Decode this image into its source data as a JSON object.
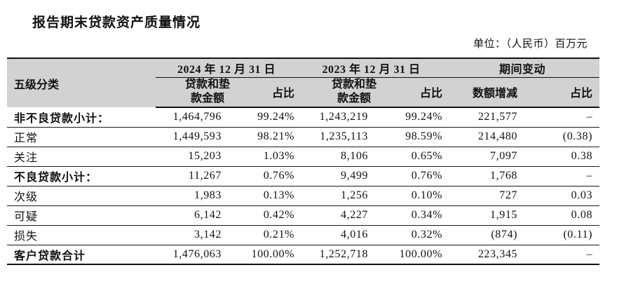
{
  "title": "报告期末贷款资产质量情况",
  "unit_note": "单位：（人民币）百万元",
  "colors": {
    "header_background": "#d2d2d2",
    "border": "#111111",
    "text": "#111111",
    "page_background": "#ffffff"
  },
  "table": {
    "category_header": "五级分类",
    "groups": [
      {
        "label": "2024 年 12 月 31 日"
      },
      {
        "label": "2023 年 12 月 31 日"
      },
      {
        "label": "期间变动"
      }
    ],
    "sub_headers": {
      "amount_2024": "贷款和垫\n款金额",
      "pct_2024": "占比",
      "amount_2023": "贷款和垫\n款金额",
      "pct_2023": "占比",
      "change_amount": "数额增减",
      "change_pct": "占比"
    },
    "rows": [
      {
        "label": "非不良贷款小计：",
        "bold": true,
        "amount_2024": "1,464,796",
        "pct_2024": "99.24%",
        "amount_2023": "1,243,219",
        "pct_2023": "99.24%",
        "change_amount": "221,577",
        "change_pct": "–"
      },
      {
        "label": "正常",
        "bold": false,
        "amount_2024": "1,449,593",
        "pct_2024": "98.21%",
        "amount_2023": "1,235,113",
        "pct_2023": "98.59%",
        "change_amount": "214,480",
        "change_pct": "(0.38)"
      },
      {
        "label": "关注",
        "bold": false,
        "amount_2024": "15,203",
        "pct_2024": "1.03%",
        "amount_2023": "8,106",
        "pct_2023": "0.65%",
        "change_amount": "7,097",
        "change_pct": "0.38"
      },
      {
        "label": "不良贷款小计：",
        "bold": true,
        "amount_2024": "11,267",
        "pct_2024": "0.76%",
        "amount_2023": "9,499",
        "pct_2023": "0.76%",
        "change_amount": "1,768",
        "change_pct": "–"
      },
      {
        "label": "次级",
        "bold": false,
        "amount_2024": "1,983",
        "pct_2024": "0.13%",
        "amount_2023": "1,256",
        "pct_2023": "0.10%",
        "change_amount": "727",
        "change_pct": "0.03"
      },
      {
        "label": "可疑",
        "bold": false,
        "amount_2024": "6,142",
        "pct_2024": "0.42%",
        "amount_2023": "4,227",
        "pct_2023": "0.34%",
        "change_amount": "1,915",
        "change_pct": "0.08"
      },
      {
        "label": "损失",
        "bold": false,
        "amount_2024": "3,142",
        "pct_2024": "0.21%",
        "amount_2023": "4,016",
        "pct_2023": "0.32%",
        "change_amount": "(874)",
        "change_pct": "(0.11)"
      },
      {
        "label": "客户贷款合计",
        "bold": true,
        "amount_2024": "1,476,063",
        "pct_2024": "100.00%",
        "amount_2023": "1,252,718",
        "pct_2023": "100.00%",
        "change_amount": "223,345",
        "change_pct": "–"
      }
    ]
  }
}
